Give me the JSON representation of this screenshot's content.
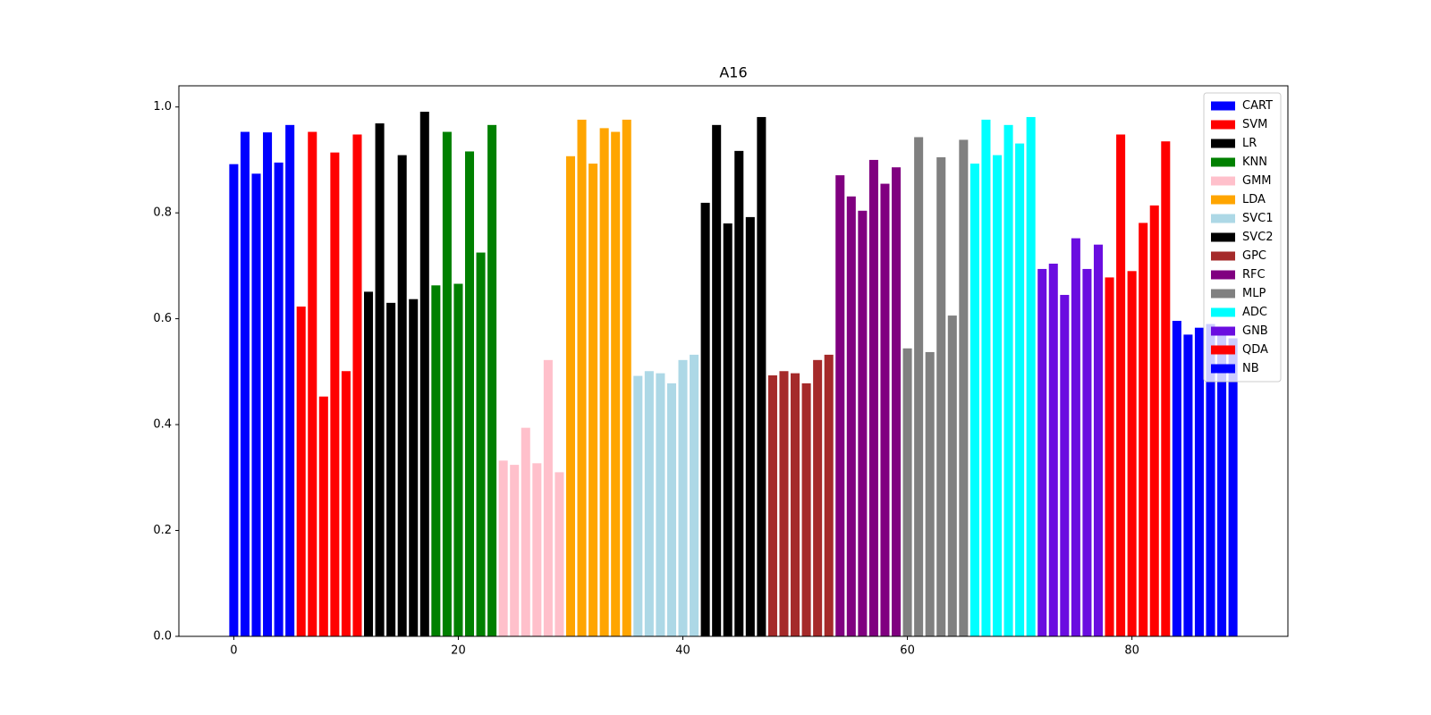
{
  "chart_data": {
    "type": "bar",
    "title": "A16",
    "series": [
      {
        "name": "CART",
        "color": "#0000ff",
        "x": [
          0,
          1,
          2,
          3,
          4,
          5
        ],
        "values": [
          0.892,
          0.953,
          0.874,
          0.952,
          0.895,
          0.966
        ]
      },
      {
        "name": "SVM",
        "color": "#ff0000",
        "x": [
          6,
          7,
          8,
          9,
          10,
          11
        ],
        "values": [
          0.623,
          0.953,
          0.453,
          0.914,
          0.501,
          0.948
        ]
      },
      {
        "name": "LR",
        "color": "#000000",
        "x": [
          12,
          13,
          14,
          15,
          16,
          17
        ],
        "values": [
          0.651,
          0.969,
          0.63,
          0.909,
          0.637,
          0.991
        ]
      },
      {
        "name": "KNN",
        "color": "#008000",
        "x": [
          18,
          19,
          20,
          21,
          22,
          23
        ],
        "values": [
          0.663,
          0.953,
          0.666,
          0.916,
          0.725,
          0.966
        ]
      },
      {
        "name": "GMM",
        "color": "#ffc0cb",
        "x": [
          24,
          25,
          26,
          27,
          28,
          29
        ],
        "values": [
          0.332,
          0.324,
          0.394,
          0.327,
          0.522,
          0.31
        ]
      },
      {
        "name": "LDA",
        "color": "#ffa500",
        "x": [
          30,
          31,
          32,
          33,
          34,
          35
        ],
        "values": [
          0.907,
          0.976,
          0.893,
          0.96,
          0.953,
          0.976
        ]
      },
      {
        "name": "SVC1",
        "color": "#add8e6",
        "x": [
          36,
          37,
          38,
          39,
          40,
          41
        ],
        "values": [
          0.492,
          0.501,
          0.497,
          0.478,
          0.522,
          0.532
        ]
      },
      {
        "name": "SVC2",
        "color": "#000000",
        "x": [
          42,
          43,
          44,
          45,
          46,
          47
        ],
        "values": [
          0.819,
          0.966,
          0.78,
          0.917,
          0.792,
          0.981
        ]
      },
      {
        "name": "GPC",
        "color": "#a52a2a",
        "x": [
          48,
          49,
          50,
          51,
          52,
          53
        ],
        "values": [
          0.493,
          0.501,
          0.497,
          0.478,
          0.522,
          0.532
        ]
      },
      {
        "name": "RFC",
        "color": "#800080",
        "x": [
          54,
          55,
          56,
          57,
          58,
          59
        ],
        "values": [
          0.871,
          0.831,
          0.804,
          0.9,
          0.855,
          0.886
        ]
      },
      {
        "name": "MLP",
        "color": "#808080",
        "x": [
          60,
          61,
          62,
          63,
          64,
          65
        ],
        "values": [
          0.544,
          0.943,
          0.537,
          0.905,
          0.606,
          0.938
        ]
      },
      {
        "name": "ADC",
        "color": "#00ffff",
        "x": [
          66,
          67,
          68,
          69,
          70,
          71
        ],
        "values": [
          0.893,
          0.976,
          0.909,
          0.966,
          0.931,
          0.981
        ]
      },
      {
        "name": "GNB",
        "color": "#6a0de0",
        "x": [
          72,
          73,
          74,
          75,
          76,
          77
        ],
        "values": [
          0.694,
          0.704,
          0.645,
          0.752,
          0.694,
          0.74
        ]
      },
      {
        "name": "QDA",
        "color": "#ff0000",
        "x": [
          78,
          79,
          80,
          81,
          82,
          83
        ],
        "values": [
          0.678,
          0.948,
          0.69,
          0.781,
          0.814,
          0.935
        ]
      },
      {
        "name": "NB",
        "color": "#0000ff",
        "x": [
          84,
          85,
          86,
          87,
          88,
          89
        ],
        "values": [
          0.596,
          0.57,
          0.583,
          0.59,
          0.57,
          0.563
        ]
      }
    ],
    "xlim": [
      -4.89,
      93.89
    ],
    "xticks": [
      0,
      20,
      40,
      60,
      80
    ],
    "ylim": [
      0,
      1.04
    ],
    "yticks": [
      {
        "value": 0,
        "label": "0.0"
      },
      {
        "value": 0.2,
        "label": "0.2"
      },
      {
        "value": 0.4,
        "label": "0.4"
      },
      {
        "value": 0.6,
        "label": "0.6"
      },
      {
        "value": 0.8,
        "label": "0.8"
      },
      {
        "value": 1,
        "label": "1.0"
      }
    ],
    "legend": "upper right"
  }
}
